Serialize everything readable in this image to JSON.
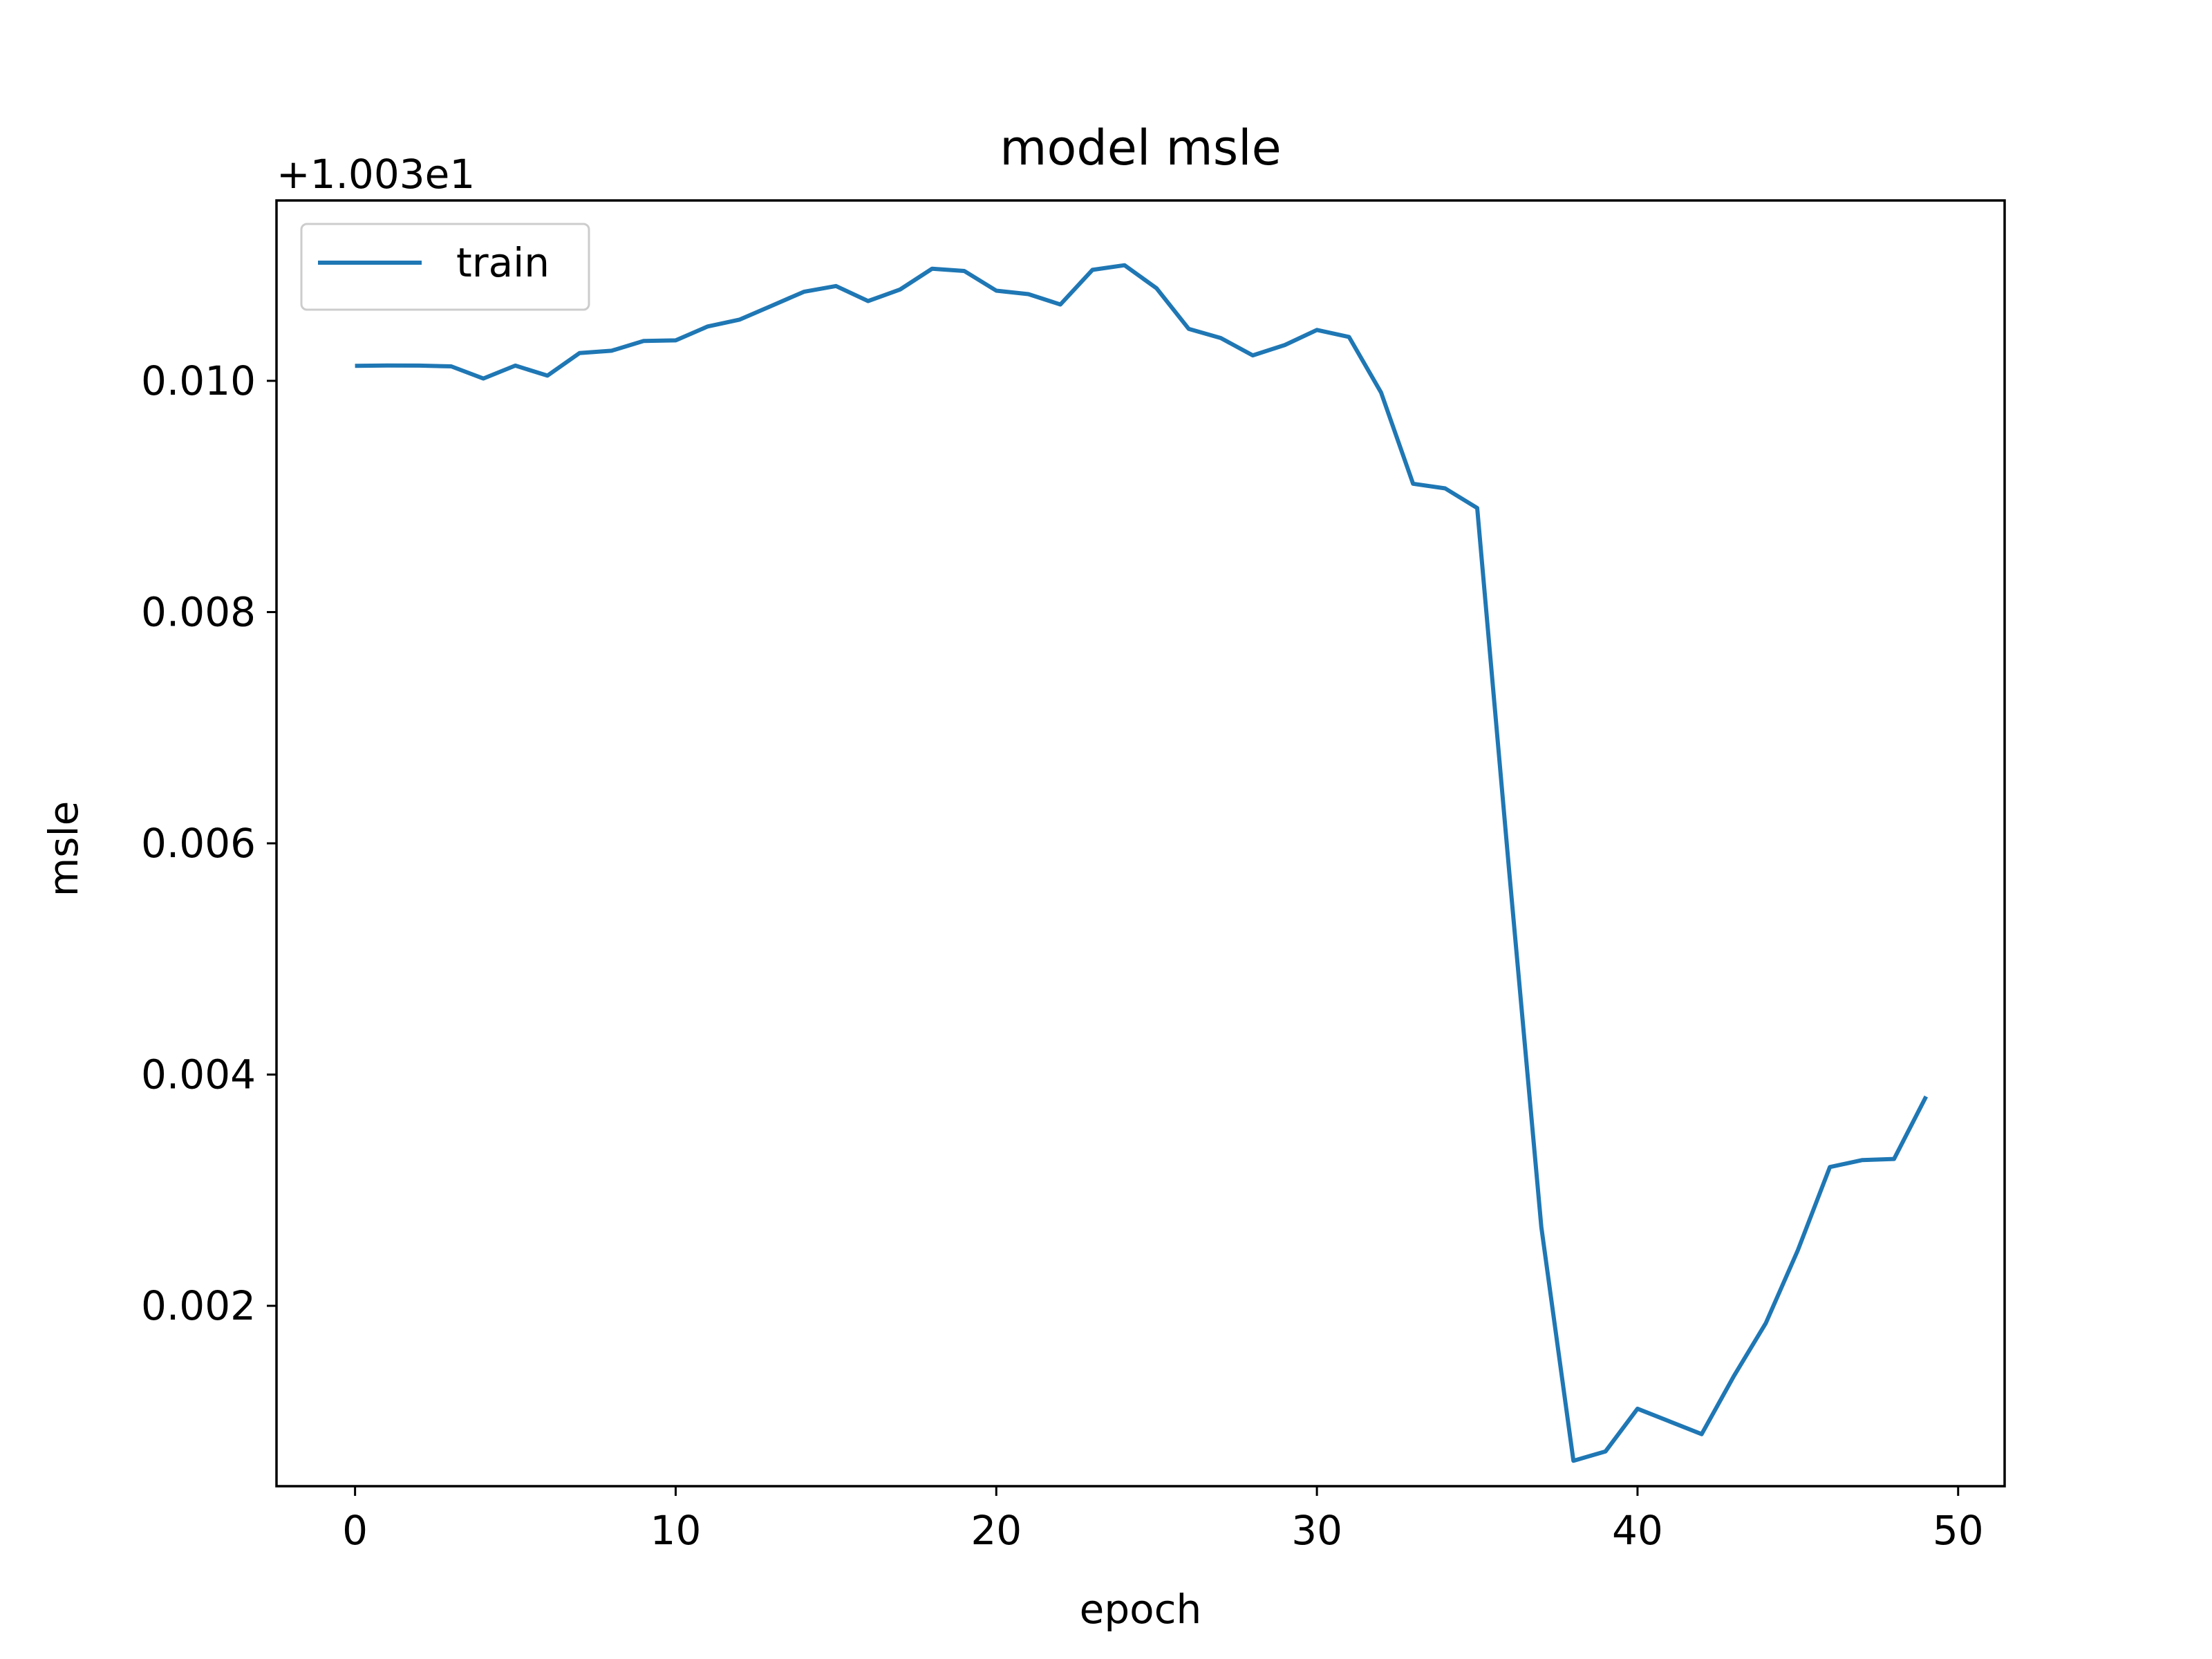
{
  "chart_data": {
    "type": "line",
    "title": "model msle",
    "xlabel": "epoch",
    "ylabel": "msle",
    "offset_label": "+1.003e1",
    "offset": 10.03,
    "xlim": [
      -2.45,
      51.45
    ],
    "ylim": [
      0.00044,
      0.01156
    ],
    "x_ticks": [
      0,
      10,
      20,
      30,
      40,
      50
    ],
    "x_tick_labels": [
      "0",
      "10",
      "20",
      "30",
      "40",
      "50"
    ],
    "y_ticks": [
      0.002,
      0.004,
      0.006,
      0.008,
      0.01
    ],
    "y_tick_labels": [
      "0.002",
      "0.004",
      "0.006",
      "0.008",
      "0.010"
    ],
    "grid": false,
    "legend_position": "upper left",
    "series": [
      {
        "name": "train",
        "color": "#1f77b4",
        "x": [
          0,
          1,
          2,
          3,
          4,
          5,
          6,
          7,
          8,
          9,
          10,
          11,
          12,
          13,
          14,
          15,
          16,
          17,
          18,
          19,
          20,
          21,
          22,
          23,
          24,
          25,
          26,
          27,
          28,
          29,
          30,
          31,
          32,
          33,
          34,
          35,
          36,
          37,
          38,
          39,
          40,
          41,
          42,
          43,
          44,
          45,
          46,
          47,
          48,
          49
        ],
        "values": [
          0.01013,
          0.010133,
          0.010132,
          0.010125,
          0.01002,
          0.010132,
          0.010045,
          0.01024,
          0.01026,
          0.010345,
          0.01035,
          0.01047,
          0.01053,
          0.01065,
          0.01077,
          0.01082,
          0.01069,
          0.01079,
          0.01097,
          0.01095,
          0.01078,
          0.01075,
          0.01066,
          0.01096,
          0.011,
          0.0108,
          0.01045,
          0.01037,
          0.01022,
          0.01031,
          0.01044,
          0.01038,
          0.0099,
          0.00911,
          0.00907,
          0.0089,
          0.00575,
          0.00268,
          0.00066,
          0.00074,
          0.00111,
          0.001,
          0.00089,
          0.00139,
          0.00185,
          0.00248,
          0.0032,
          0.00326,
          0.00327,
          0.00381
        ]
      }
    ]
  }
}
